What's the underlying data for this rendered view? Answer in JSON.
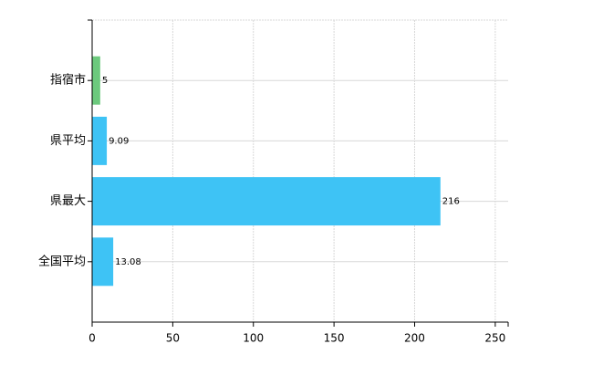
{
  "chart_data": {
    "type": "hbar",
    "categories": [
      "指宿市",
      "県平均",
      "県最大",
      "全国平均"
    ],
    "values": [
      5,
      9.09,
      216,
      13.08
    ],
    "colors": [
      "#6cc97d",
      "#3ec3f5",
      "#3ec3f5",
      "#3ec3f5"
    ],
    "xlim": [
      0,
      258
    ],
    "xticks": [
      0,
      50,
      100,
      150,
      200,
      250
    ],
    "grid": true
  }
}
